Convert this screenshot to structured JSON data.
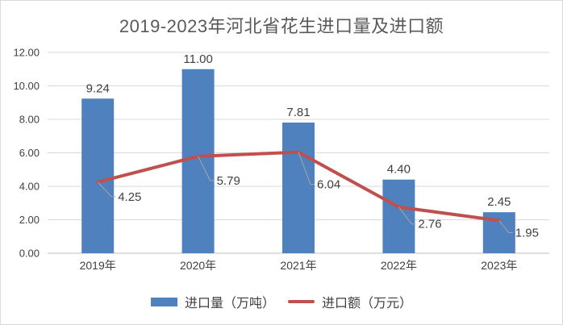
{
  "title": "2019-2023年河北省花生进口量及进口额",
  "chart_data": {
    "type": "bar",
    "title": "2019-2023年河北省花生进口量及进口额",
    "categories": [
      "2019年",
      "2020年",
      "2021年",
      "2022年",
      "2023年"
    ],
    "series": [
      {
        "name": "进口量（万吨）",
        "type": "bar",
        "color": "#4E81BD",
        "values": [
          9.24,
          11.0,
          7.81,
          4.4,
          2.45
        ],
        "labels": [
          "9.24",
          "11.00",
          "7.81",
          "4.40",
          "2.45"
        ]
      },
      {
        "name": "进口额（万元）",
        "type": "line",
        "color": "#C0504D",
        "values": [
          4.25,
          5.79,
          6.04,
          2.76,
          1.95
        ],
        "labels": [
          "4.25",
          "5.79",
          "6.04",
          "2.76",
          "1.95"
        ]
      }
    ],
    "xlabel": "",
    "ylabel": "",
    "ylim": [
      0,
      12
    ],
    "ytick_step": 2,
    "ytick_labels": [
      "0.00",
      "2.00",
      "4.00",
      "6.00",
      "8.00",
      "10.00",
      "12.00"
    ],
    "grid": true,
    "legend_position": "bottom"
  },
  "colors": {
    "bar": "#4E81BD",
    "line": "#C0504D",
    "gridline": "#D9D9D9",
    "axis_line": "#BFBFBF",
    "leader_line": "#A6A6A6",
    "label_text": "#404040",
    "title_text": "#595959",
    "frame_border": "#D9D9D9"
  }
}
